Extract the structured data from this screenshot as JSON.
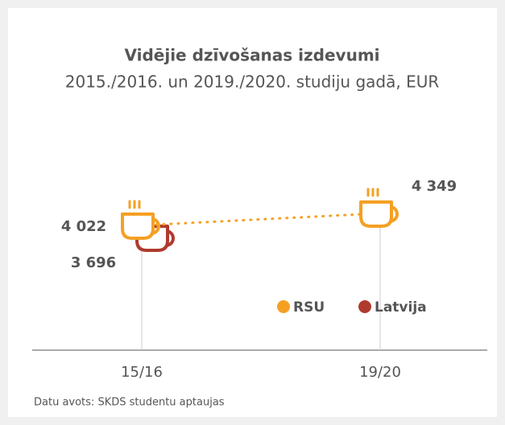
{
  "chart_data": {
    "type": "pictogram-line",
    "title": "Vidējie dzīvošanas izdevumi",
    "subtitle": "2015./2016. un 2019./2020. studiju gadā, EUR",
    "categories": [
      "15/16",
      "19/20"
    ],
    "series": [
      {
        "name": "RSU",
        "color": "#f5a023",
        "values": [
          4022,
          4349
        ],
        "value_labels": [
          "4 022",
          "4 349"
        ]
      },
      {
        "name": "Latvija",
        "color": "#b03a2e",
        "values": [
          3696,
          null
        ],
        "value_labels": [
          "3 696",
          null
        ]
      }
    ],
    "ylim": [
      3000,
      5000
    ],
    "source": "Datu avots: SKDS studentu aptaujas"
  }
}
